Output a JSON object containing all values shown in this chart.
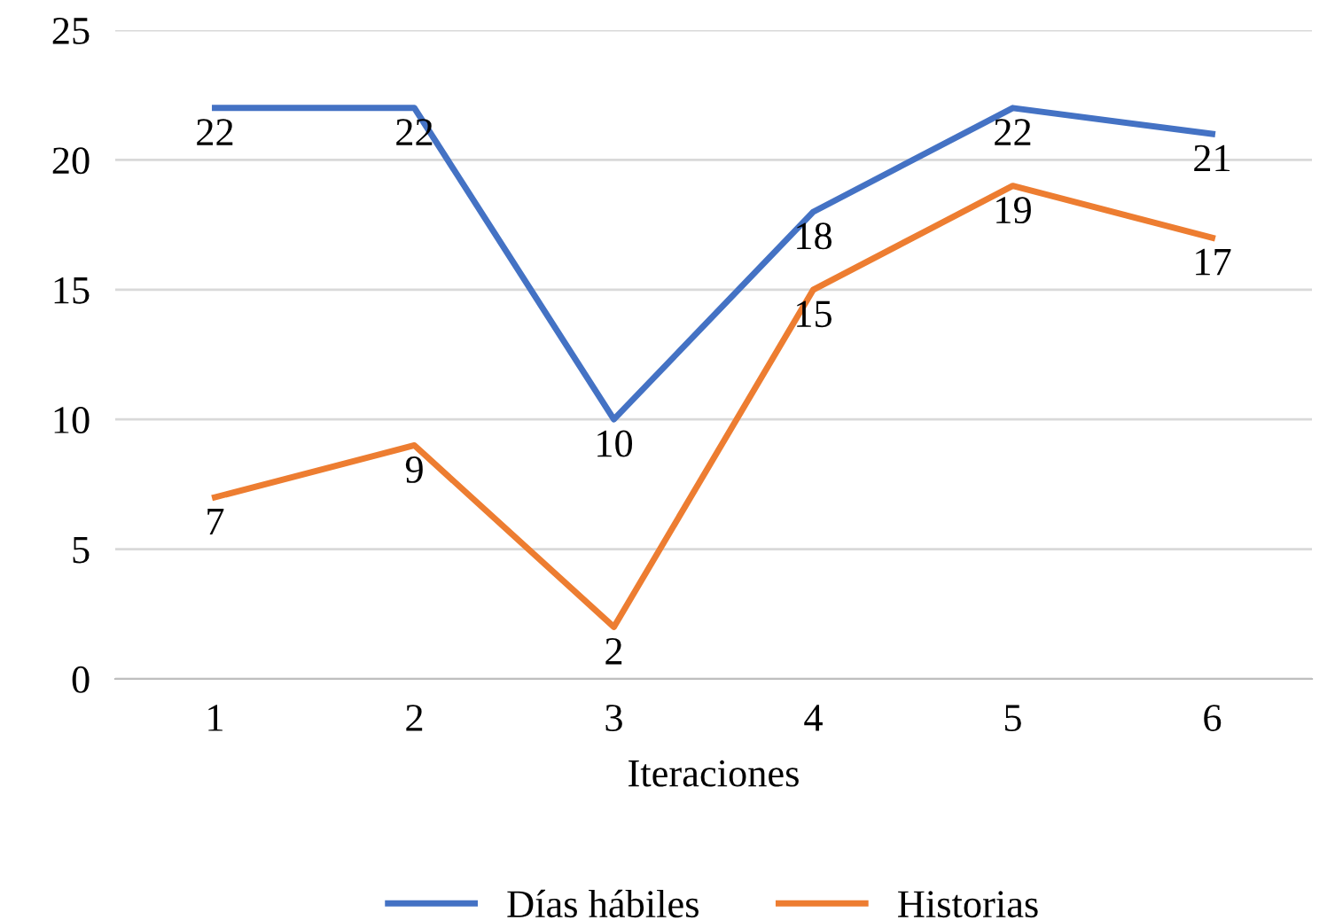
{
  "chart_data": {
    "type": "line",
    "xlabel": "Iteraciones",
    "categories": [
      "1",
      "2",
      "3",
      "4",
      "5",
      "6"
    ],
    "series": [
      {
        "name": "Días hábiles",
        "color": "#4472c4",
        "values": [
          22,
          22,
          10,
          18,
          22,
          21
        ]
      },
      {
        "name": "Historias",
        "color": "#ed7d31",
        "values": [
          7,
          9,
          2,
          15,
          19,
          17
        ]
      }
    ],
    "ylim": [
      0,
      25
    ],
    "yticks": [
      0,
      5,
      10,
      15,
      20,
      25
    ],
    "grid": "y",
    "data_labels": true,
    "legend": "bottom",
    "marker": "none",
    "line_style": "solid"
  }
}
